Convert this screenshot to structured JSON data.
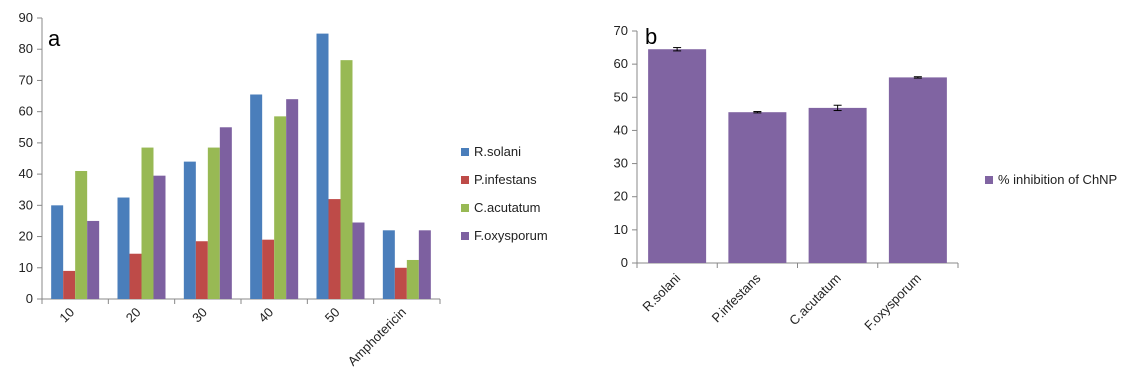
{
  "chart_data": [
    {
      "type": "bar",
      "panel_label": "a",
      "categories": [
        "10",
        "20",
        "30",
        "40",
        "50",
        "Amphotericin"
      ],
      "series": [
        {
          "name": "R.solani",
          "color": "#4a7ebb",
          "values": [
            30,
            32.5,
            44,
            65.5,
            85,
            22
          ]
        },
        {
          "name": "P.infestans",
          "color": "#be4b48",
          "values": [
            9,
            14.5,
            18.5,
            19,
            32,
            10
          ]
        },
        {
          "name": "C.acutatum",
          "color": "#98b954",
          "values": [
            41,
            48.5,
            48.5,
            58.5,
            76.5,
            12.5
          ]
        },
        {
          "name": "F.oxysporum",
          "color": "#7d60a0",
          "values": [
            25,
            39.5,
            55,
            64,
            24.5,
            22
          ]
        }
      ],
      "ylim": [
        0,
        90
      ],
      "yticks": [
        "0",
        "10",
        "20",
        "30",
        "40",
        "50",
        "60",
        "70",
        "80",
        "90"
      ],
      "grid": false,
      "legend": "right"
    },
    {
      "type": "bar",
      "panel_label": "b",
      "categories": [
        "R.solani",
        "P.infestans",
        "C.acutatum",
        "F.oxysporum"
      ],
      "series": [
        {
          "name": "% inhibition of ChNP",
          "color": "#8064a2",
          "values": [
            64.5,
            45.5,
            46.8,
            56
          ],
          "errors": [
            0.5,
            0.2,
            0.8,
            0.2
          ]
        }
      ],
      "ylim": [
        0,
        70
      ],
      "yticks": [
        "0",
        "10",
        "20",
        "30",
        "40",
        "50",
        "60",
        "70"
      ],
      "grid": false,
      "legend": "right"
    }
  ]
}
